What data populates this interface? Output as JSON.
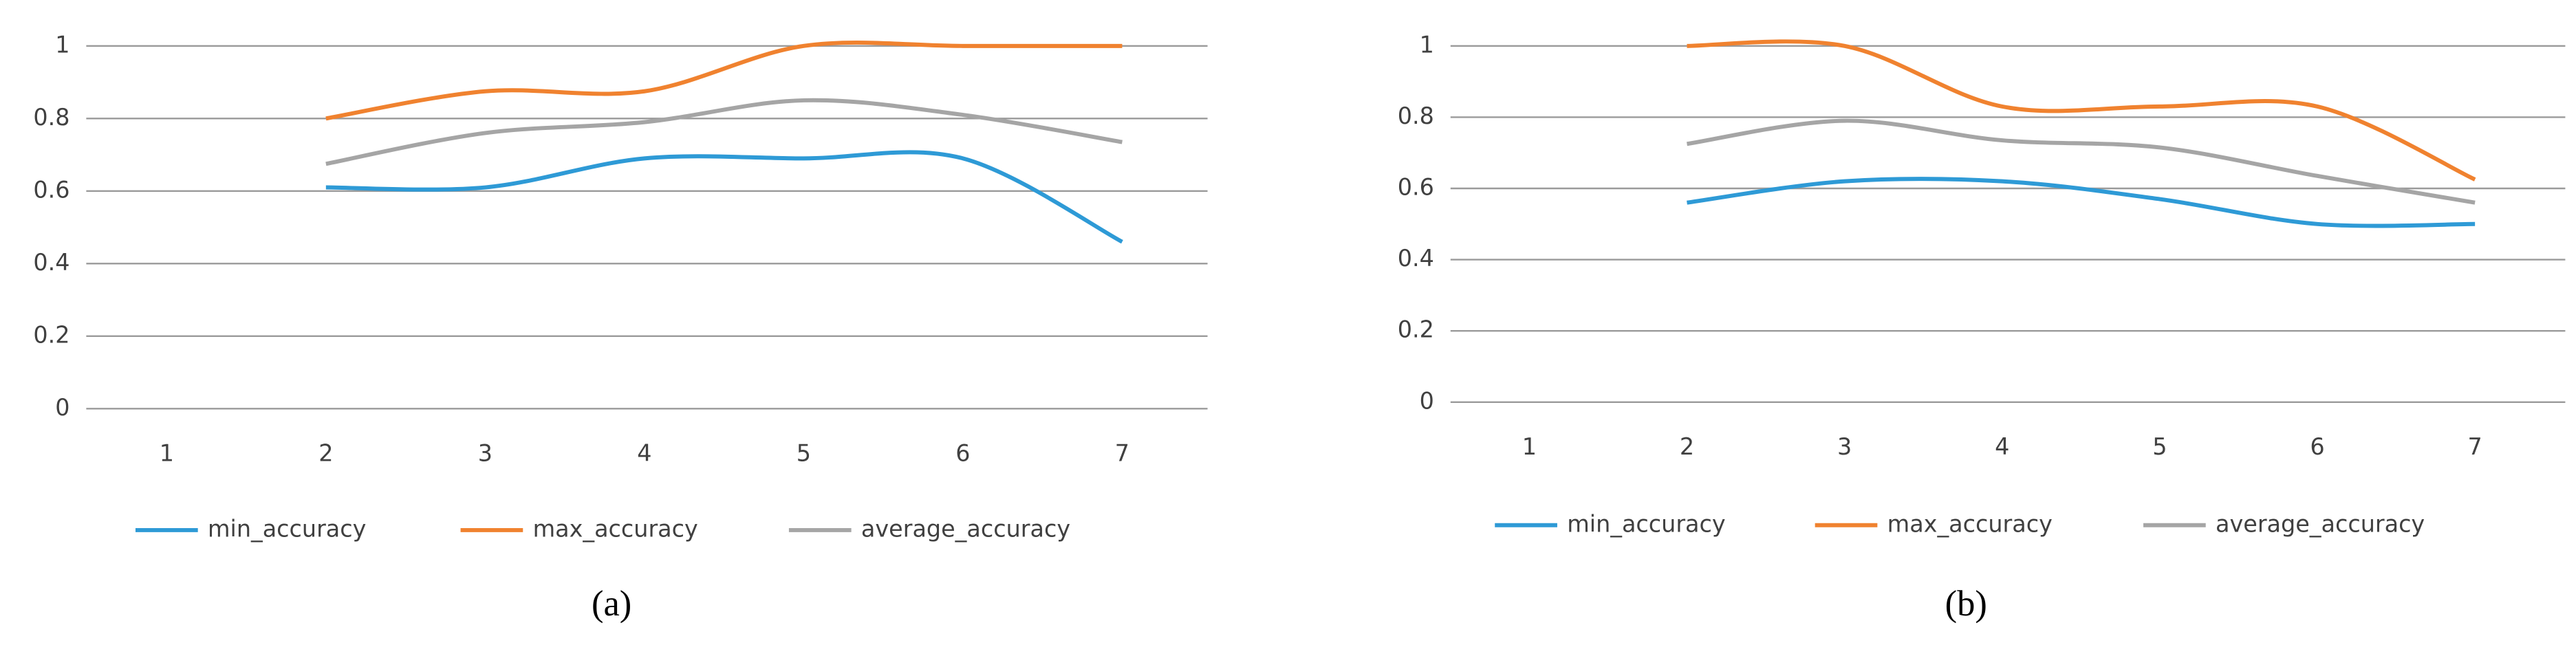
{
  "chart_data": [
    {
      "type": "line",
      "caption": "(a)",
      "categories": [
        "1",
        "2",
        "3",
        "4",
        "5",
        "6",
        "7"
      ],
      "series": [
        {
          "name": "min_accuracy",
          "color": "#2e9ad6",
          "values": [
            null,
            0.61,
            0.61,
            0.69,
            0.69,
            0.69,
            0.46
          ]
        },
        {
          "name": "max_accuracy",
          "color": "#f0822f",
          "values": [
            null,
            0.8,
            0.875,
            0.875,
            1.0,
            1.0,
            1.0
          ]
        },
        {
          "name": "average_accuracy",
          "color": "#a5a5a5",
          "values": [
            null,
            0.675,
            0.76,
            0.79,
            0.85,
            0.81,
            0.735
          ]
        }
      ],
      "ylim": [
        0,
        1
      ],
      "yticks": [
        0,
        0.2,
        0.4,
        0.6,
        0.8,
        1
      ],
      "grid": true,
      "legend": "bottom"
    },
    {
      "type": "line",
      "caption": "(b)",
      "categories": [
        "1",
        "2",
        "3",
        "4",
        "5",
        "6",
        "7"
      ],
      "series": [
        {
          "name": "min_accuracy",
          "color": "#2e9ad6",
          "values": [
            null,
            0.56,
            0.62,
            0.62,
            0.57,
            0.5,
            0.5
          ]
        },
        {
          "name": "max_accuracy",
          "color": "#f0822f",
          "values": [
            null,
            1.0,
            1.0,
            0.83,
            0.83,
            0.83,
            0.625
          ]
        },
        {
          "name": "average_accuracy",
          "color": "#a5a5a5",
          "values": [
            null,
            0.725,
            0.79,
            0.735,
            0.715,
            0.635,
            0.56
          ]
        }
      ],
      "ylim": [
        0,
        1
      ],
      "yticks": [
        0,
        0.2,
        0.4,
        0.6,
        0.8,
        1
      ],
      "grid": true,
      "legend": "bottom"
    }
  ]
}
